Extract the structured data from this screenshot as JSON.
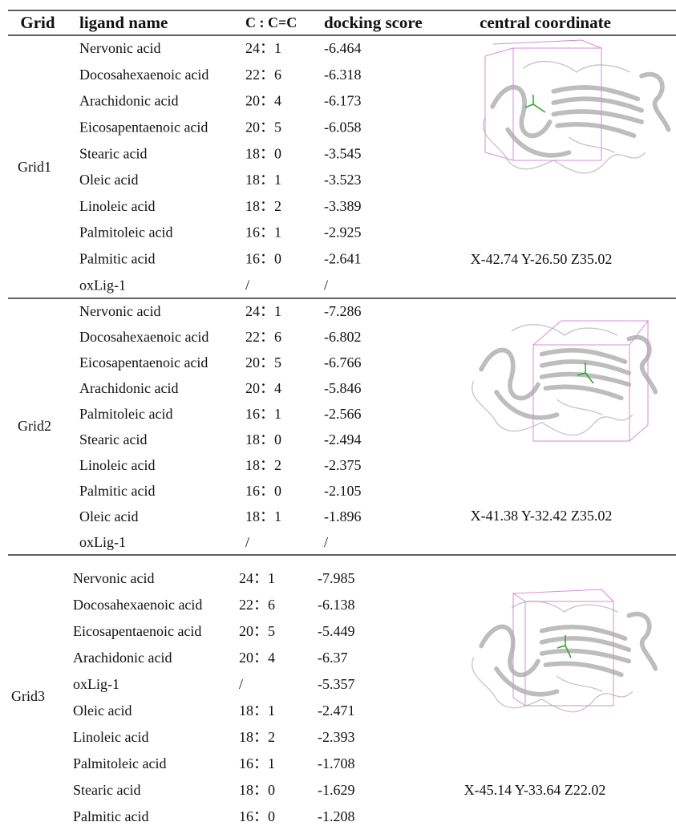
{
  "header": {
    "grid": "Grid",
    "ligand_name": "ligand name",
    "ratio": "C : C=C",
    "docking_score": "docking score",
    "central_coordinate": "central coordinate"
  },
  "groups": [
    {
      "grid": "Grid1",
      "coordinate": "X-42.74 Y-26.50 Z35.02",
      "rows": [
        [
          "Nervonic acid",
          "24：1",
          "-6.464"
        ],
        [
          "Docosahexaenoic acid",
          "22：6",
          "-6.318"
        ],
        [
          "Arachidonic acid",
          "20：4",
          "-6.173"
        ],
        [
          "Eicosapentaenoic acid",
          "20：5",
          "-6.058"
        ],
        [
          "Stearic acid",
          "18：0",
          "-3.545"
        ],
        [
          "Oleic acid",
          "18：1",
          "-3.523"
        ],
        [
          "Linoleic acid",
          "18：2",
          "-3.389"
        ],
        [
          "Palmitoleic acid",
          "16：1",
          "-2.925"
        ],
        [
          "Palmitic acid",
          "16：0",
          "-2.641"
        ],
        [
          "oxLig-1",
          "/",
          "/"
        ]
      ]
    },
    {
      "grid": "Grid2",
      "coordinate": "X-41.38 Y-32.42 Z35.02",
      "rows": [
        [
          "Nervonic acid",
          "24：1",
          "-7.286"
        ],
        [
          "Docosahexaenoic acid",
          "22：6",
          "-6.802"
        ],
        [
          "Eicosapentaenoic acid",
          "20：5",
          "-6.766"
        ],
        [
          "Arachidonic acid",
          "20：4",
          "-5.846"
        ],
        [
          "Palmitoleic acid",
          "16：1",
          "-2.566"
        ],
        [
          "Stearic acid",
          "18：0",
          "-2.494"
        ],
        [
          "Linoleic acid",
          "18：2",
          "-2.375"
        ],
        [
          "Palmitic acid",
          "16：0",
          "-2.105"
        ],
        [
          "Oleic acid",
          "18：1",
          "-1.896"
        ],
        [
          "oxLig-1",
          "/",
          "/"
        ]
      ]
    },
    {
      "grid": "Grid3",
      "coordinate": "X-45.14 Y-33.64 Z22.02",
      "rows": [
        [
          "Nervonic acid",
          "24：1",
          "-7.985"
        ],
        [
          "Docosahexaenoic acid",
          "22：6",
          "-6.138"
        ],
        [
          "Eicosapentaenoic acid",
          "20：5",
          "-5.449"
        ],
        [
          "Arachidonic acid",
          "20：4",
          "-6.37"
        ],
        [
          "oxLig-1",
          "/",
          "-5.357"
        ],
        [
          "Oleic acid",
          "18：1",
          "-2.471"
        ],
        [
          "Linoleic acid",
          "18：2",
          "-2.393"
        ],
        [
          "Palmitoleic acid",
          "16：1",
          "-1.708"
        ],
        [
          "Stearic acid",
          "18：0",
          "-1.629"
        ],
        [
          "Palmitic acid",
          "16：0",
          "-1.208"
        ]
      ]
    }
  ]
}
